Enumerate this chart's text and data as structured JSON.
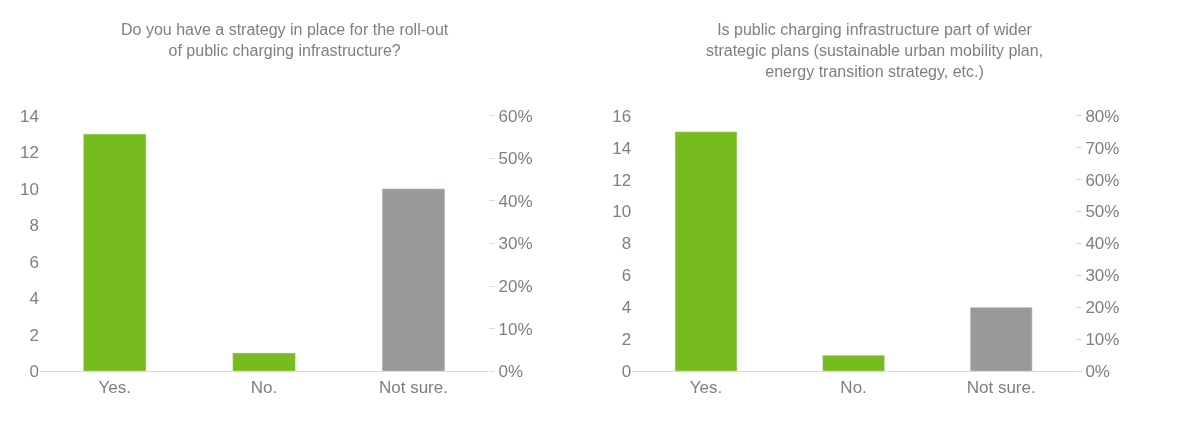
{
  "chart_data": [
    {
      "type": "bar",
      "title": "Do you have a strategy in place for the roll-out\nof public charging infrastructure?",
      "categories": [
        "Yes.",
        "No.",
        "Not sure."
      ],
      "values": [
        13,
        1,
        10
      ],
      "colors": [
        "#77bc1f",
        "#77bc1f",
        "#999999"
      ],
      "ylim": [
        0,
        14
      ],
      "yticks": [
        0,
        2,
        4,
        6,
        8,
        10,
        12,
        14
      ],
      "y2lim": [
        0,
        60
      ],
      "y2ticks": [
        {
          "value": 0,
          "label": "0%"
        },
        {
          "value": 10,
          "label": "10%"
        },
        {
          "value": 20,
          "label": "20%"
        },
        {
          "value": 30,
          "label": "30%"
        },
        {
          "value": 40,
          "label": "40%"
        },
        {
          "value": 50,
          "label": "50%"
        },
        {
          "value": 60,
          "label": "60%"
        }
      ]
    },
    {
      "type": "bar",
      "title": "Is public charging infrastructure part of wider\nstrategic plans (sustainable urban mobility plan,\nenergy transition strategy, etc.)",
      "categories": [
        "Yes.",
        "No.",
        "Not sure."
      ],
      "values": [
        15,
        1,
        4
      ],
      "colors": [
        "#77bc1f",
        "#77bc1f",
        "#999999"
      ],
      "ylim": [
        0,
        16
      ],
      "yticks": [
        0,
        2,
        4,
        6,
        8,
        10,
        12,
        14,
        16
      ],
      "y2lim": [
        0,
        80
      ],
      "y2ticks": [
        {
          "value": 0,
          "label": "0%"
        },
        {
          "value": 10,
          "label": "10%"
        },
        {
          "value": 20,
          "label": "20%"
        },
        {
          "value": 30,
          "label": "30%"
        },
        {
          "value": 40,
          "label": "40%"
        },
        {
          "value": 50,
          "label": "50%"
        },
        {
          "value": 60,
          "label": "60%"
        },
        {
          "value": 70,
          "label": "70%"
        },
        {
          "value": 80,
          "label": "80%"
        }
      ]
    }
  ]
}
